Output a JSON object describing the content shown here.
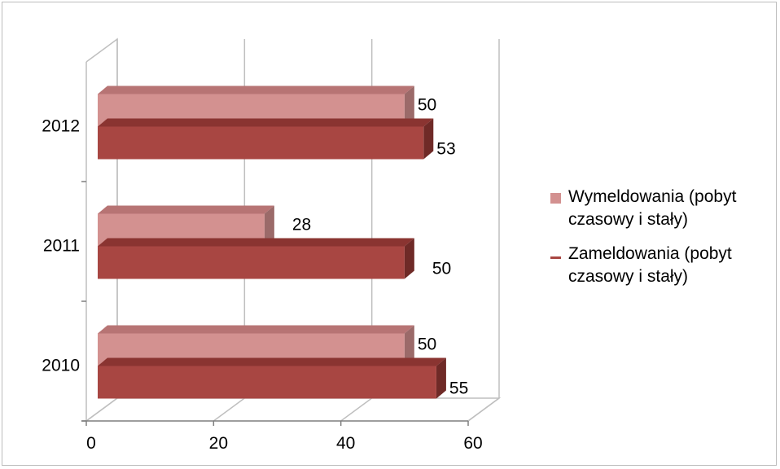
{
  "chart_data": {
    "type": "bar",
    "orientation": "horizontal",
    "style": "3d",
    "categories": [
      "2010",
      "2011",
      "2012"
    ],
    "series": [
      {
        "name": "Wymeldowania (pobyt czasowy i stały)",
        "values": [
          50,
          28,
          50
        ],
        "color": "#d39190",
        "side_color": "#9b6a69",
        "top_color": "#b77474"
      },
      {
        "name": "Zameldowania (pobyt czasowy i stały)",
        "values": [
          55,
          50,
          53
        ],
        "color": "#a84642",
        "side_color": "#6f2a27",
        "top_color": "#8a3431"
      }
    ],
    "xlim": [
      0,
      60
    ],
    "xticks": [
      "0",
      "20",
      "40",
      "60"
    ],
    "grid": true,
    "legend_position": "right",
    "title": "",
    "xlabel": "",
    "ylabel": ""
  },
  "legend": {
    "items": [
      {
        "label_line1": "Wymeldowania (pobyt",
        "label_line2": "czasowy i stały)"
      },
      {
        "label_line1": "Zameldowania (pobyt",
        "label_line2": "czasowy i stały)"
      }
    ]
  }
}
